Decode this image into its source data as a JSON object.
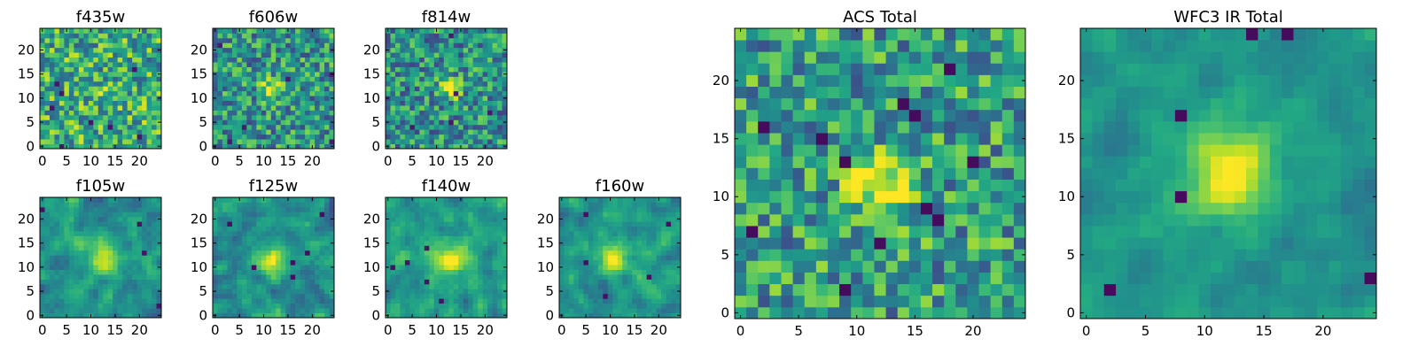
{
  "chart_data": {
    "type": "heatmap",
    "colormap": "viridis",
    "value_range": [
      0,
      1
    ],
    "note": "Pixel intensities are estimated (0 = dark purple, 1 = bright yellow). Each small panel is a 25x25 cutout; totals are coadded images.",
    "panels": [
      {
        "id": "f435w",
        "title": "f435w",
        "xticks": [
          "0",
          "5",
          "10",
          "15",
          "20"
        ],
        "yticks": [
          "0",
          "5",
          "10",
          "15",
          "20"
        ],
        "source": {
          "kind": "noise",
          "seed": 11,
          "base": 0.62,
          "noise": 0.32,
          "peak": 0.05,
          "cx": 12,
          "cy": 11,
          "sigma": 2.0,
          "smooth": 0,
          "dark": 8,
          "darkv": 0.06
        }
      },
      {
        "id": "f606w",
        "title": "f606w",
        "xticks": [
          "0",
          "5",
          "10",
          "15",
          "20"
        ],
        "yticks": [
          "0",
          "5",
          "10",
          "15",
          "20"
        ],
        "source": {
          "kind": "noise",
          "seed": 23,
          "base": 0.52,
          "noise": 0.3,
          "peak": 0.45,
          "cx": 12,
          "cy": 12,
          "sigma": 1.6,
          "smooth": 0,
          "dark": 6,
          "darkv": 0.08
        }
      },
      {
        "id": "f814w",
        "title": "f814w",
        "xticks": [
          "0",
          "5",
          "10",
          "15",
          "20"
        ],
        "yticks": [
          "0",
          "5",
          "10",
          "15",
          "20"
        ],
        "source": {
          "kind": "noise",
          "seed": 37,
          "base": 0.5,
          "noise": 0.3,
          "peak": 0.55,
          "cx": 13,
          "cy": 12,
          "sigma": 1.4,
          "smooth": 0,
          "dark": 5,
          "darkv": 0.07
        }
      },
      {
        "id": "f105w",
        "title": "f105w",
        "xticks": [
          "0",
          "5",
          "10",
          "15",
          "20"
        ],
        "yticks": [
          "0",
          "5",
          "10",
          "15",
          "20"
        ],
        "source": {
          "kind": "noise",
          "seed": 41,
          "base": 0.5,
          "noise": 0.36,
          "peak": 0.45,
          "cx": 13,
          "cy": 12,
          "sigma": 2.6,
          "smooth": 1,
          "dark": 4,
          "darkv": 0.05
        }
      },
      {
        "id": "f125w",
        "title": "f125w",
        "xticks": [
          "0",
          "5",
          "10",
          "15",
          "20"
        ],
        "yticks": [
          "0",
          "5",
          "10",
          "15",
          "20"
        ],
        "source": {
          "kind": "noise",
          "seed": 53,
          "base": 0.5,
          "noise": 0.38,
          "peak": 0.4,
          "cx": 12,
          "cy": 11,
          "sigma": 2.2,
          "smooth": 1,
          "dark": 6,
          "darkv": 0.04
        }
      },
      {
        "id": "f140w",
        "title": "f140w",
        "xticks": [
          "0",
          "5",
          "10",
          "15",
          "20"
        ],
        "yticks": [
          "0",
          "5",
          "10",
          "15",
          "20"
        ],
        "source": {
          "kind": "noise",
          "seed": 67,
          "base": 0.55,
          "noise": 0.34,
          "peak": 0.4,
          "cx": 13,
          "cy": 12,
          "sigma": 2.4,
          "smooth": 1,
          "dark": 5,
          "darkv": 0.05
        }
      },
      {
        "id": "f160w",
        "title": "f160w",
        "xticks": [
          "0",
          "5",
          "10",
          "15",
          "20"
        ],
        "yticks": [
          "0",
          "5",
          "10",
          "15",
          "20"
        ],
        "source": {
          "kind": "noise",
          "seed": 79,
          "base": 0.52,
          "noise": 0.34,
          "peak": 0.45,
          "cx": 11,
          "cy": 12,
          "sigma": 2.4,
          "smooth": 1,
          "dark": 5,
          "darkv": 0.04
        }
      },
      {
        "id": "acs_total",
        "title": "ACS Total",
        "xticks": [
          "0",
          "5",
          "10",
          "15",
          "20"
        ],
        "yticks": [
          "0",
          "5",
          "10",
          "15",
          "20"
        ],
        "source": {
          "kind": "noise",
          "seed": 97,
          "base": 0.55,
          "noise": 0.3,
          "peak": 0.55,
          "cx": 12,
          "cy": 11,
          "sigma": 1.8,
          "smooth": 0,
          "dark": 12,
          "darkv": 0.03
        }
      },
      {
        "id": "wfc3_ir_total",
        "title": "WFC3 IR Total",
        "xticks": [
          "0",
          "5",
          "10",
          "15",
          "20"
        ],
        "yticks": [
          "0",
          "5",
          "10",
          "15",
          "20"
        ],
        "source": {
          "kind": "noise",
          "seed": 113,
          "base": 0.52,
          "noise": 0.22,
          "peak": 0.55,
          "cx": 12,
          "cy": 12,
          "sigma": 2.6,
          "smooth": 1,
          "dark": 6,
          "darkv": 0.03
        }
      }
    ]
  }
}
